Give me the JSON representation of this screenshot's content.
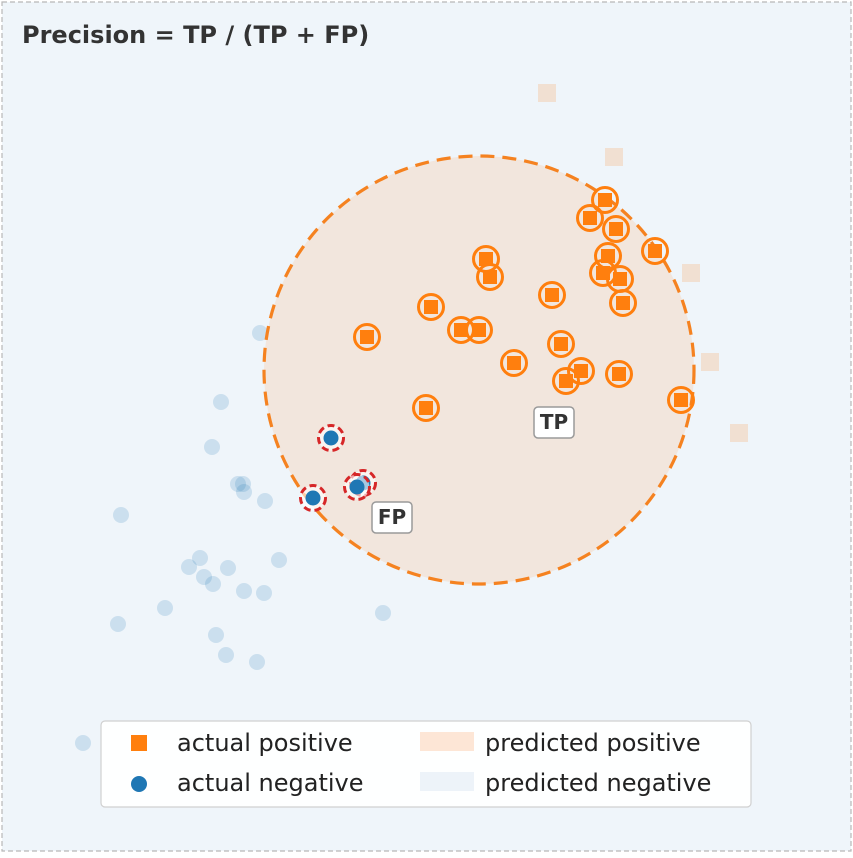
{
  "title": "Precision = TP / (TP + FP)",
  "labels": {
    "tp": "TP",
    "fp": "FP"
  },
  "legend": {
    "actual_positive": "actual positive",
    "actual_negative": "actual negative",
    "predicted_positive": "predicted positive",
    "predicted_negative": "predicted negative"
  },
  "colors": {
    "positive": "#ff7f0e",
    "negative": "#1f77b4",
    "positive_ring": "#ff7f0e",
    "false_positive_ring": "#d62728",
    "predicted_positive_fill": "#f2e6dd",
    "predicted_negative_fill": "#eef4f9",
    "decision_boundary": "#f58220"
  },
  "counts": {
    "true_positive": 22,
    "false_positive": 4
  },
  "icons": {
    "actual_positive": "orange-square-icon",
    "actual_negative": "blue-circle-icon"
  }
}
